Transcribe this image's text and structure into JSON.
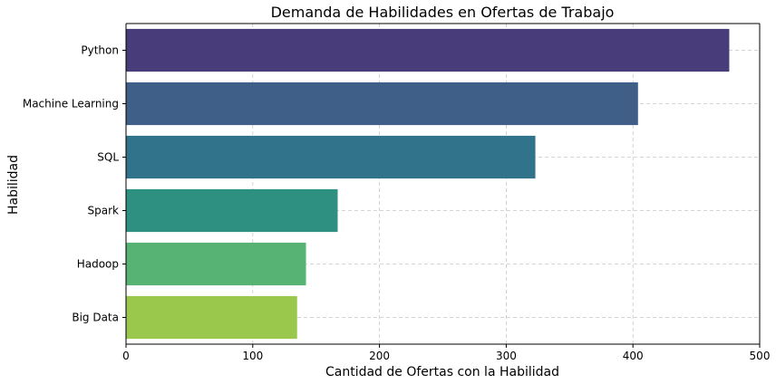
{
  "chart_data": {
    "type": "bar",
    "orientation": "horizontal",
    "title": "Demanda de Habilidades en Ofertas de Trabajo",
    "xlabel": "Cantidad de Ofertas con la Habilidad",
    "ylabel": "Habilidad",
    "categories": [
      "Python",
      "Machine Learning",
      "SQL",
      "Spark",
      "Hadoop",
      "Big Data"
    ],
    "values": [
      476,
      404,
      323,
      167,
      142,
      135
    ],
    "colors": [
      "#483d7a",
      "#3f5f88",
      "#31738a",
      "#2e9080",
      "#56b374",
      "#9ac84d"
    ],
    "xlim": [
      0,
      500
    ],
    "xticks": [
      "0",
      "100",
      "200",
      "300",
      "400",
      "500"
    ],
    "grid": true
  }
}
